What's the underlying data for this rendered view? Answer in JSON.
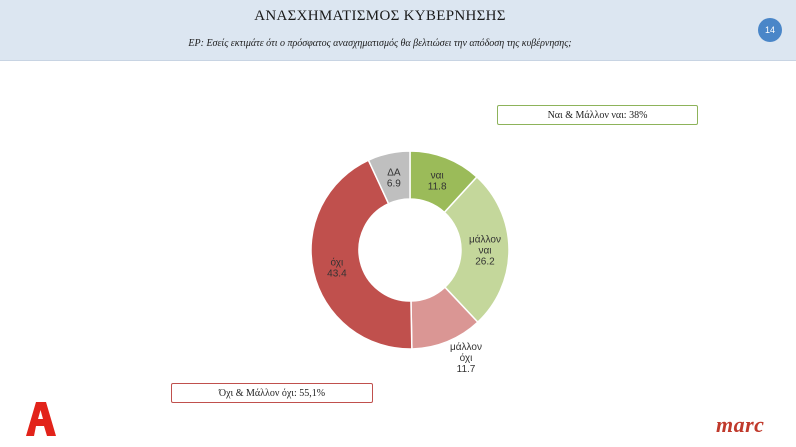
{
  "header": {
    "title": "ΑΝΑΣΧΗΜΑΤΙΣΜΟΣ ΚΥΒΕΡΝΗΣΗΣ",
    "question": "ΕΡ: Εσείς εκτιμάτε ότι ο πρόσφατος ανασχηματισμός θα βελτιώσει την απόδοση της κυβέρνησης;",
    "page_number": "14"
  },
  "callouts": {
    "yes_total": "Ναι & Μάλλον ναι: 38%",
    "no_total": "Όχι & Μάλλον όχι: 55,1%"
  },
  "logos": {
    "left": "Α",
    "right": "marc"
  },
  "chart_data": {
    "type": "pie",
    "variant": "donut",
    "categories": [
      "ναι",
      "μάλλον ναι",
      "μάλλον όχι",
      "όχι",
      "ΔΑ"
    ],
    "values": [
      11.8,
      26.2,
      11.7,
      43.4,
      6.9
    ],
    "label_lines": [
      [
        "ναι"
      ],
      [
        "μάλλον",
        "ναι"
      ],
      [
        "μάλλον",
        "όχι"
      ],
      [
        "όχι"
      ],
      [
        "ΔΑ"
      ]
    ],
    "value_labels": [
      "11.8",
      "26.2",
      "11.7",
      "43.4",
      "6.9"
    ],
    "colors": [
      "#9bbb59",
      "#c4d79b",
      "#da9694",
      "#c0504d",
      "#bfbfbf"
    ]
  }
}
